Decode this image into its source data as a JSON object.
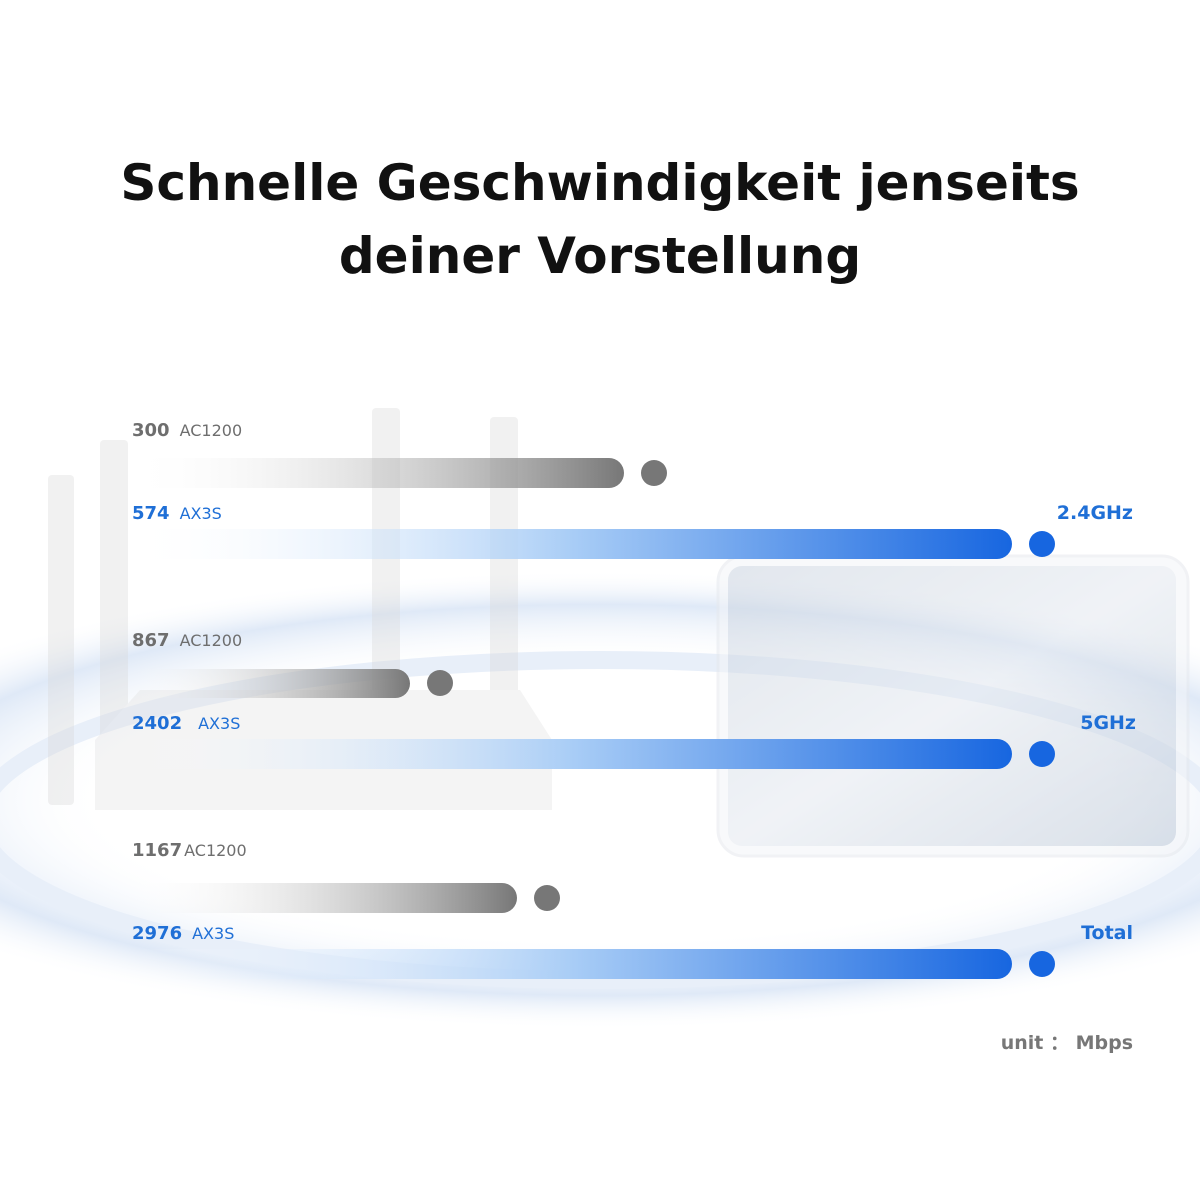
{
  "title": {
    "line1": "Schnelle Geschwindigkeit jenseits",
    "line2": "deiner Vorstellung"
  },
  "groups": [
    {
      "label": "2.4GHz",
      "rows": [
        {
          "value": "300",
          "model": "AC1200"
        },
        {
          "value": "574",
          "model": "AX3S"
        }
      ]
    },
    {
      "label": "5GHz",
      "rows": [
        {
          "value": "867",
          "model": "AC1200"
        },
        {
          "value": "2402",
          "model": "AX3S"
        }
      ]
    },
    {
      "label": "Total",
      "rows": [
        {
          "value": "1167",
          "model": "AC1200"
        },
        {
          "value": "2976",
          "model": "AX3S"
        }
      ]
    }
  ],
  "unit": "unit ： Mbps"
}
